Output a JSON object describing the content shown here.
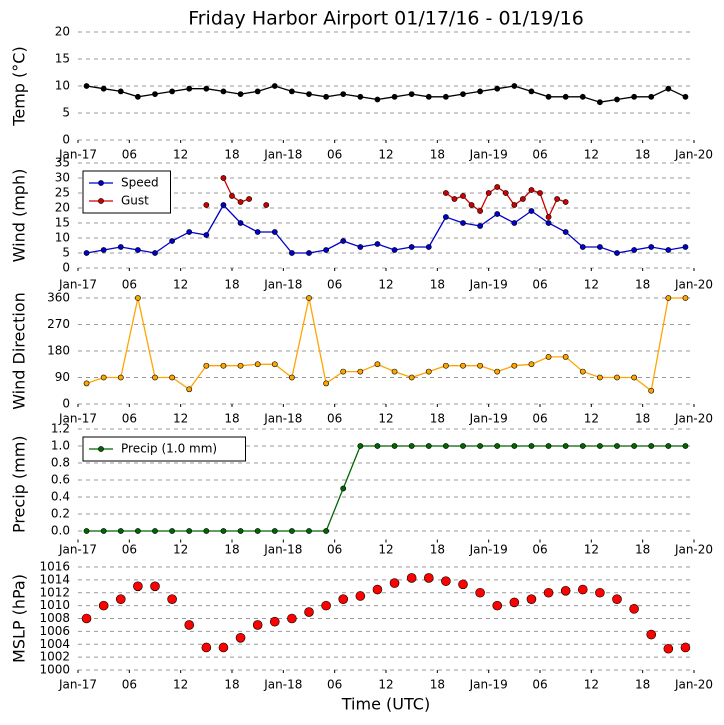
{
  "title": "Friday Harbor Airport 01/17/16 - 01/19/16",
  "xlabel": "Time (UTC)",
  "xlim": [
    0,
    72
  ],
  "xticks": [
    {
      "value": 0,
      "label": "Jan-17"
    },
    {
      "value": 6,
      "label": "06"
    },
    {
      "value": 12,
      "label": "12"
    },
    {
      "value": 18,
      "label": "18"
    },
    {
      "value": 24,
      "label": "Jan-18"
    },
    {
      "value": 30,
      "label": "06"
    },
    {
      "value": 36,
      "label": "12"
    },
    {
      "value": 42,
      "label": "18"
    },
    {
      "value": 48,
      "label": "Jan-19"
    },
    {
      "value": 54,
      "label": "06"
    },
    {
      "value": 60,
      "label": "12"
    },
    {
      "value": 66,
      "label": "18"
    },
    {
      "value": 72,
      "label": "Jan-20"
    }
  ],
  "x": [
    1,
    3,
    5,
    7,
    9,
    11,
    13,
    15,
    17,
    19,
    21,
    23,
    25,
    27,
    29,
    31,
    33,
    35,
    37,
    39,
    41,
    43,
    45,
    47,
    49,
    51,
    53,
    55,
    57,
    59,
    61,
    63,
    65,
    67,
    69,
    71
  ],
  "chart_data": [
    {
      "type": "line",
      "ylabel": "Temp (°C)",
      "ylim": [
        0,
        20
      ],
      "yticks": [
        0,
        5,
        10,
        15,
        20
      ],
      "grid": true,
      "series": [
        {
          "name": "Temp",
          "color": "#000000",
          "values": [
            10,
            9.5,
            9,
            8,
            8.5,
            9,
            9.5,
            9.5,
            9,
            8.5,
            9,
            10,
            9,
            8.5,
            8,
            8.5,
            8,
            7.5,
            8,
            8.5,
            8,
            8,
            8.5,
            9,
            9.5,
            10,
            9,
            8,
            8,
            8,
            7,
            7.5,
            8,
            8,
            9.5,
            8
          ]
        }
      ]
    },
    {
      "type": "line",
      "ylabel": "Wind (mph)",
      "ylim": [
        0,
        35
      ],
      "yticks": [
        0,
        5,
        10,
        15,
        20,
        25,
        30,
        35
      ],
      "grid": true,
      "legend": "upper left",
      "series": [
        {
          "name": "Speed",
          "color": "#0000cc",
          "values": [
            5,
            6,
            7,
            6,
            5,
            9,
            12,
            11,
            21,
            15,
            12,
            12,
            5,
            5,
            6,
            9,
            7,
            8,
            6,
            7,
            7,
            17,
            15,
            14,
            18,
            15,
            19,
            15,
            12,
            7,
            7,
            5,
            6,
            7,
            6,
            7
          ]
        },
        {
          "name": "Gust",
          "color": "#cc0000",
          "x": [
            15,
            16,
            17,
            18,
            19,
            20,
            21,
            22,
            23,
            43,
            44,
            45,
            46,
            47,
            48,
            49,
            50,
            51,
            52,
            53,
            54,
            55,
            56,
            57
          ],
          "values": [
            21,
            null,
            30,
            24,
            22,
            23,
            null,
            21,
            null,
            25,
            23,
            24,
            21,
            19,
            25,
            27,
            25,
            21,
            23,
            26,
            25,
            17,
            23,
            22
          ]
        }
      ]
    },
    {
      "type": "line",
      "ylabel": "Wind Direction",
      "ylim": [
        0,
        360
      ],
      "yticks": [
        0,
        90,
        180,
        270,
        360
      ],
      "grid": true,
      "series": [
        {
          "name": "Direction",
          "color": "#ffa500",
          "values": [
            70,
            90,
            90,
            360,
            90,
            90,
            50,
            130,
            130,
            130,
            135,
            135,
            90,
            360,
            70,
            110,
            110,
            135,
            110,
            90,
            110,
            130,
            130,
            130,
            110,
            130,
            135,
            160,
            160,
            110,
            90,
            90,
            90,
            45,
            360,
            360
          ]
        }
      ]
    },
    {
      "type": "line",
      "ylabel": "Precip (mm)",
      "ylim": [
        -0.1,
        1.2
      ],
      "yticks": [
        {
          "value": 0,
          "label": "0.0"
        },
        {
          "value": 0.2,
          "label": "0.2"
        },
        {
          "value": 0.4,
          "label": "0.4"
        },
        {
          "value": 0.6,
          "label": "0.6"
        },
        {
          "value": 0.8,
          "label": "0.8"
        },
        {
          "value": 1,
          "label": "1.0"
        },
        {
          "value": 1.2,
          "label": "1.2"
        }
      ],
      "grid": true,
      "legend": "upper left",
      "series": [
        {
          "name": "Precip (1.0 mm)",
          "color": "#006600",
          "values": [
            0,
            0,
            0,
            0,
            0,
            0,
            0,
            0,
            0,
            0,
            0,
            0,
            0,
            0,
            0,
            0.5,
            1,
            1,
            1,
            1,
            1,
            1,
            1,
            1,
            1,
            1,
            1,
            1,
            1,
            1,
            1,
            1,
            1,
            1,
            1,
            1
          ]
        }
      ]
    },
    {
      "type": "scatter",
      "ylabel": "MSLP (hPa)",
      "ylim": [
        1000,
        1016
      ],
      "yticks": [
        1000,
        1002,
        1004,
        1006,
        1008,
        1010,
        1012,
        1014,
        1016
      ],
      "grid": true,
      "series": [
        {
          "name": "MSLP",
          "color": "#ff0000",
          "values": [
            1008,
            1010,
            1011,
            1013,
            1013,
            1011,
            1007,
            1003.5,
            1003.5,
            1005,
            1007,
            1007.5,
            1008,
            1009,
            1010,
            1011,
            1011.5,
            1012.5,
            1013.5,
            1014.3,
            1014.3,
            1013.8,
            1013.3,
            1012,
            1010,
            1010.5,
            1011,
            1012,
            1012.3,
            1012.5,
            1012,
            1011,
            1009.5,
            1005.5,
            1003.3,
            1003.5
          ]
        }
      ]
    }
  ]
}
